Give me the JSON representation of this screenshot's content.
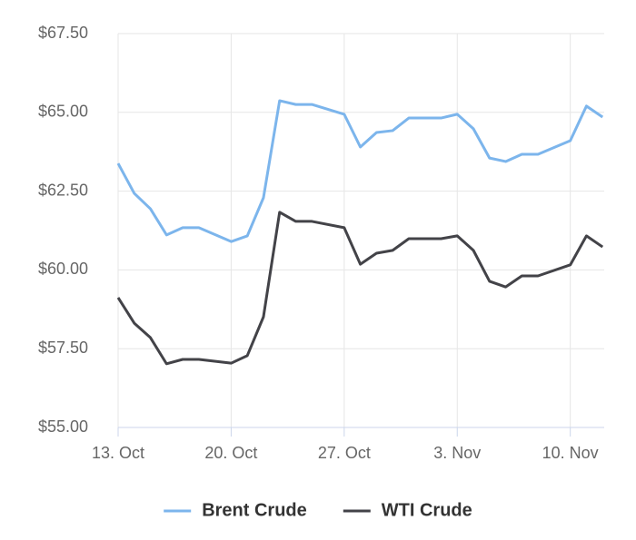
{
  "chart_data": {
    "type": "line",
    "x": [
      0,
      1,
      2,
      3,
      4,
      5,
      7,
      8,
      9,
      10,
      11,
      12,
      14,
      15,
      16,
      17,
      18,
      19,
      20,
      21,
      22,
      23,
      24,
      25,
      26,
      28,
      29,
      30
    ],
    "series": [
      {
        "name": "Brent Crude",
        "color": "#7cb5ec",
        "values": [
          63.38,
          62.43,
          61.94,
          61.11,
          61.34,
          61.34,
          60.9,
          61.08,
          62.29,
          65.37,
          65.25,
          65.25,
          64.94,
          63.9,
          64.36,
          64.42,
          64.82,
          64.82,
          64.82,
          64.94,
          64.48,
          63.55,
          63.44,
          63.67,
          63.67,
          64.1,
          65.2,
          64.85
        ]
      },
      {
        "name": "WTI Crude",
        "color": "#434348",
        "values": [
          59.12,
          58.31,
          57.85,
          57.02,
          57.16,
          57.16,
          57.04,
          57.28,
          58.51,
          61.83,
          61.54,
          61.54,
          61.34,
          60.18,
          60.53,
          60.62,
          60.99,
          60.99,
          60.99,
          61.08,
          60.62,
          59.64,
          59.46,
          59.81,
          59.81,
          60.16,
          61.08,
          60.73
        ]
      }
    ],
    "xlim": [
      0,
      30.1
    ],
    "xticks": [
      {
        "value": 0,
        "label": "13. Oct"
      },
      {
        "value": 7,
        "label": "20. Oct"
      },
      {
        "value": 14,
        "label": "27. Oct"
      },
      {
        "value": 21,
        "label": "3. Nov"
      },
      {
        "value": 28,
        "label": "10. Nov"
      }
    ],
    "ylim": [
      55,
      67.5
    ],
    "yticks": [
      {
        "value": 55,
        "label": "$55.00"
      },
      {
        "value": 57.5,
        "label": "$57.50"
      },
      {
        "value": 60,
        "label": "$60.00"
      },
      {
        "value": 62.5,
        "label": "$62.50"
      },
      {
        "value": 65,
        "label": "$65.00"
      },
      {
        "value": 67.5,
        "label": "$67.50"
      }
    ],
    "grid": true,
    "legend": "bottom"
  }
}
